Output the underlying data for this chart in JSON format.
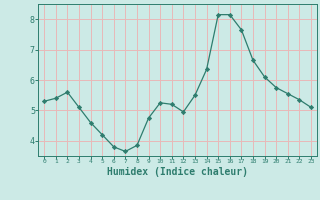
{
  "x": [
    0,
    1,
    2,
    3,
    4,
    5,
    6,
    7,
    8,
    9,
    10,
    11,
    12,
    13,
    14,
    15,
    16,
    17,
    18,
    19,
    20,
    21,
    22,
    23
  ],
  "y": [
    5.3,
    5.4,
    5.6,
    5.1,
    4.6,
    4.2,
    3.8,
    3.65,
    3.85,
    4.75,
    5.25,
    5.2,
    4.95,
    5.5,
    6.35,
    8.15,
    8.15,
    7.65,
    6.65,
    6.1,
    5.75,
    5.55,
    5.35,
    5.1
  ],
  "line_color": "#2e7d6e",
  "marker": "D",
  "marker_size": 2.2,
  "background_color": "#cceae6",
  "grid_color": "#e8b8b8",
  "axis_color": "#2e7d6e",
  "xlabel": "Humidex (Indice chaleur)",
  "xlabel_fontsize": 7,
  "tick_label_color": "#2e7d6e",
  "ylim": [
    3.5,
    8.5
  ],
  "yticks": [
    4,
    5,
    6,
    7,
    8
  ],
  "xlim": [
    -0.5,
    23.5
  ],
  "xticks": [
    0,
    1,
    2,
    3,
    4,
    5,
    6,
    7,
    8,
    9,
    10,
    11,
    12,
    13,
    14,
    15,
    16,
    17,
    18,
    19,
    20,
    21,
    22,
    23
  ]
}
